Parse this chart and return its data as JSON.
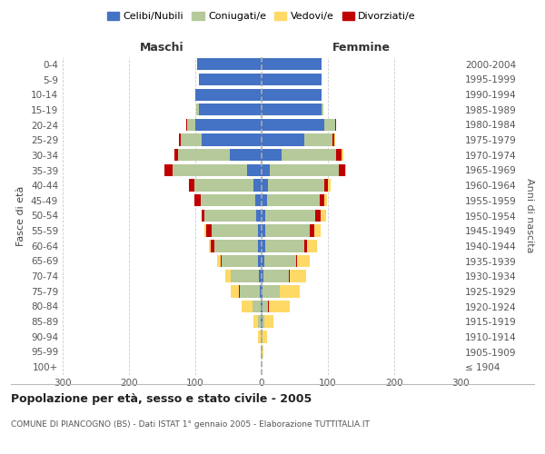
{
  "age_groups": [
    "0-4",
    "5-9",
    "10-14",
    "15-19",
    "20-24",
    "25-29",
    "30-34",
    "35-39",
    "40-44",
    "45-49",
    "50-54",
    "55-59",
    "60-64",
    "65-69",
    "70-74",
    "75-79",
    "80-84",
    "85-89",
    "90-94",
    "95-99",
    "100+"
  ],
  "birth_years": [
    "2000-2004",
    "1995-1999",
    "1990-1994",
    "1985-1989",
    "1980-1984",
    "1975-1979",
    "1970-1974",
    "1965-1969",
    "1960-1964",
    "1955-1959",
    "1950-1954",
    "1945-1949",
    "1940-1944",
    "1935-1939",
    "1930-1934",
    "1925-1929",
    "1920-1924",
    "1915-1919",
    "1910-1914",
    "1905-1909",
    "≤ 1904"
  ],
  "maschi": {
    "celibi": [
      97,
      95,
      100,
      95,
      100,
      90,
      48,
      22,
      13,
      10,
      8,
      5,
      6,
      5,
      4,
      3,
      2,
      1,
      0,
      0,
      0
    ],
    "coniugati": [
      0,
      0,
      0,
      3,
      13,
      32,
      78,
      112,
      88,
      82,
      78,
      70,
      65,
      55,
      42,
      30,
      12,
      4,
      2,
      1,
      0
    ],
    "vedovi": [
      0,
      0,
      0,
      0,
      0,
      0,
      0,
      0,
      1,
      1,
      1,
      2,
      3,
      5,
      8,
      13,
      16,
      7,
      3,
      1,
      0
    ],
    "divorziati": [
      0,
      0,
      0,
      0,
      1,
      2,
      6,
      12,
      8,
      9,
      4,
      9,
      6,
      2,
      1,
      1,
      0,
      0,
      0,
      0,
      0
    ]
  },
  "femmine": {
    "nubili": [
      90,
      90,
      90,
      90,
      95,
      65,
      30,
      12,
      10,
      8,
      6,
      5,
      5,
      4,
      3,
      2,
      2,
      1,
      0,
      0,
      0
    ],
    "coniugate": [
      0,
      0,
      0,
      3,
      16,
      42,
      82,
      105,
      84,
      80,
      75,
      68,
      60,
      48,
      38,
      25,
      8,
      3,
      2,
      0,
      0
    ],
    "vedove": [
      0,
      0,
      0,
      0,
      0,
      1,
      2,
      2,
      4,
      5,
      8,
      10,
      15,
      20,
      25,
      30,
      32,
      14,
      6,
      3,
      0
    ],
    "divorziate": [
      0,
      0,
      0,
      0,
      1,
      3,
      9,
      9,
      6,
      6,
      8,
      6,
      3,
      1,
      1,
      1,
      1,
      0,
      0,
      0,
      0
    ]
  },
  "colors": {
    "celibi": "#4472C4",
    "coniugati": "#b5c99a",
    "vedovi": "#FFD966",
    "divorziati": "#C00000"
  },
  "title": "Popolazione per età, sesso e stato civile - 2005",
  "subtitle": "COMUNE DI PIANCOGNO (BS) - Dati ISTAT 1° gennaio 2005 - Elaborazione TUTTITALIA.IT",
  "xlabel_left": "Maschi",
  "xlabel_right": "Femmine",
  "ylabel_left": "Fasce di età",
  "ylabel_right": "Anni di nascita",
  "xlim": 300,
  "bg_color": "#ffffff",
  "grid_color": "#cccccc"
}
